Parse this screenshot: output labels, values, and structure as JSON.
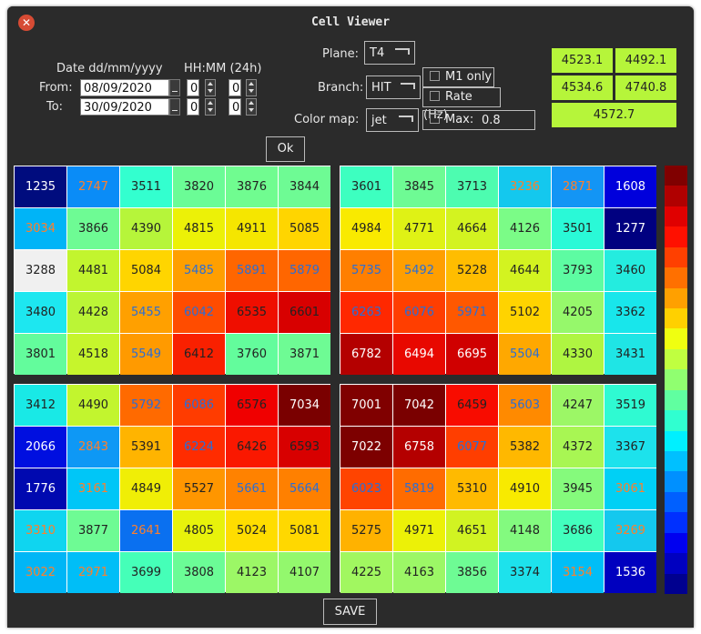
{
  "window": {
    "title": "Cell Viewer"
  },
  "dates": {
    "date_header": "Date dd/mm/yyyy",
    "time_header": "HH:MM (24h)",
    "from_label": "From:",
    "to_label": "To:",
    "from_date": "08/09/2020",
    "to_date": "30/09/2020",
    "from_hour": "0",
    "from_minute": "0",
    "to_hour": "0",
    "to_minute": "0"
  },
  "controls": {
    "plane_label": "Plane:",
    "plane_value": "T4",
    "branch_label": "Branch:",
    "branch_value": "HIT",
    "colormap_label": "Color map:",
    "colormap_value": "jet",
    "m1_only_label": "M1 only",
    "rate_label": "Rate (Hz)",
    "max_label": "Max:",
    "max_value": "0.8",
    "ok_label": "Ok",
    "save_label": "SAVE"
  },
  "stats": {
    "values": [
      "4523.1",
      "4492.1",
      "4534.6",
      "4740.8",
      "4572.7"
    ],
    "color": "#b6f53a"
  },
  "grids": [
    {
      "name": "top-left",
      "values": [
        [
          1235,
          2747,
          3511,
          3820,
          3876,
          3844
        ],
        [
          3034,
          3866,
          4390,
          4815,
          4911,
          5085
        ],
        [
          3288,
          4481,
          5084,
          5485,
          5891,
          5879
        ],
        [
          3480,
          4428,
          5455,
          6042,
          6535,
          6601
        ],
        [
          3801,
          4518,
          5549,
          6412,
          3760,
          3871
        ]
      ],
      "colors": [
        [
          "#000c7e",
          "#0a8cf7",
          "#33ffcf",
          "#6bfc96",
          "#70fc90",
          "#6efb94"
        ],
        [
          "#00b4f7",
          "#6efb94",
          "#b6f53a",
          "#ecf107",
          "#f5e600",
          "#ffd500"
        ],
        [
          "#f0f0f0",
          "#c2f52e",
          "#ffd500",
          "#ff9f00",
          "#ff6600",
          "#ff6600"
        ],
        [
          "#1de7f0",
          "#bbf536",
          "#ffa000",
          "#ff4c00",
          "#ef0e00",
          "#d80000"
        ],
        [
          "#63fc9c",
          "#c6f52c",
          "#ff9a00",
          "#f92000",
          "#63fc9c",
          "#6efb94"
        ]
      ],
      "text": [
        [
          "#ffffff",
          "#ff7f2a",
          "#222222",
          "#222222",
          "#222222",
          "#222222"
        ],
        [
          "#ff7f2a",
          "#222222",
          "#222222",
          "#222222",
          "#222222",
          "#222222"
        ],
        [
          "#222222",
          "#222222",
          "#222222",
          "#2a6ed6",
          "#2a6ed6",
          "#2a6ed6"
        ],
        [
          "#222222",
          "#222222",
          "#2a6ed6",
          "#2a6ed6",
          "#222222",
          "#222222"
        ],
        [
          "#222222",
          "#222222",
          "#2a6ed6",
          "#222222",
          "#222222",
          "#222222"
        ]
      ]
    },
    {
      "name": "top-right",
      "values": [
        [
          3601,
          3845,
          3713,
          3236,
          2871,
          1608
        ],
        [
          4984,
          4771,
          4664,
          4126,
          3501,
          1277
        ],
        [
          5735,
          5492,
          5228,
          4644,
          3793,
          3460
        ],
        [
          6263,
          6076,
          5971,
          5102,
          4205,
          3362
        ],
        [
          6782,
          6494,
          6695,
          5504,
          4330,
          3431
        ]
      ],
      "colors": [
        [
          "#3dffc0",
          "#6efb94",
          "#4dfcb0",
          "#14c8ee",
          "#1395f5",
          "#0000dc"
        ],
        [
          "#f9ea00",
          "#dff215",
          "#d3f320",
          "#7bfc87",
          "#2af9d7",
          "#000080"
        ],
        [
          "#ff7f00",
          "#ff9f00",
          "#ffbd00",
          "#d3f320",
          "#5dfca2",
          "#24ecdf"
        ],
        [
          "#ff2800",
          "#ff3e00",
          "#ff5800",
          "#ffd300",
          "#96f86b",
          "#18e6eb"
        ],
        [
          "#b40000",
          "#e80800",
          "#d00000",
          "#ffa800",
          "#aff541",
          "#1fe5e5"
        ]
      ],
      "text": [
        [
          "#222222",
          "#222222",
          "#222222",
          "#ff7f2a",
          "#ff7f2a",
          "#ffffff"
        ],
        [
          "#222222",
          "#222222",
          "#222222",
          "#222222",
          "#222222",
          "#ffffff"
        ],
        [
          "#2a6ed6",
          "#2a6ed6",
          "#222222",
          "#222222",
          "#222222",
          "#222222"
        ],
        [
          "#2a6ed6",
          "#2a6ed6",
          "#2a6ed6",
          "#222222",
          "#222222",
          "#222222"
        ],
        [
          "#ffffff",
          "#ffffff",
          "#ffffff",
          "#2a6ed6",
          "#222222",
          "#222222"
        ]
      ]
    },
    {
      "name": "bottom-left",
      "values": [
        [
          3412,
          4490,
          5792,
          6086,
          6576,
          7034
        ],
        [
          2066,
          2843,
          5391,
          6224,
          6426,
          6593
        ],
        [
          1776,
          3161,
          4849,
          5527,
          5661,
          5664
        ],
        [
          3310,
          3877,
          2641,
          4805,
          5024,
          5081
        ],
        [
          3022,
          2971,
          3699,
          3808,
          4123,
          4107
        ]
      ],
      "colors": [
        [
          "#19e9e6",
          "#c2f52e",
          "#ff6a00",
          "#ff3c00",
          "#f00000",
          "#7a0000"
        ],
        [
          "#000fe0",
          "#0e98f5",
          "#ffb400",
          "#ff2c00",
          "#fa1800",
          "#d80000"
        ],
        [
          "#0009b0",
          "#00c6f7",
          "#f0ee06",
          "#ff9600",
          "#ff8200",
          "#ff8000"
        ],
        [
          "#0fd5f0",
          "#6efb94",
          "#0a70f0",
          "#e8f20b",
          "#ffdd00",
          "#ffd800"
        ],
        [
          "#00b6f6",
          "#00bef7",
          "#45ffb8",
          "#6bfc96",
          "#9cf766",
          "#93f86d"
        ]
      ],
      "text": [
        [
          "#222222",
          "#222222",
          "#2a6ed6",
          "#2a6ed6",
          "#222222",
          "#ffffff"
        ],
        [
          "#ffffff",
          "#ff7f2a",
          "#222222",
          "#2a6ed6",
          "#222222",
          "#222222"
        ],
        [
          "#ffffff",
          "#ff7f2a",
          "#222222",
          "#222222",
          "#2a6ed6",
          "#2a6ed6"
        ],
        [
          "#ff7f2a",
          "#222222",
          "#ff7f2a",
          "#222222",
          "#222222",
          "#222222"
        ],
        [
          "#ff7f2a",
          "#ff7f2a",
          "#222222",
          "#222222",
          "#222222",
          "#222222"
        ]
      ]
    },
    {
      "name": "bottom-right",
      "values": [
        [
          7001,
          7042,
          6459,
          5603,
          4247,
          3519
        ],
        [
          7022,
          6758,
          6077,
          5382,
          4372,
          3367
        ],
        [
          6023,
          5819,
          5310,
          4910,
          3945,
          3061
        ],
        [
          5275,
          4971,
          4651,
          4148,
          3686,
          3269
        ],
        [
          4225,
          4163,
          3856,
          3374,
          3154,
          1536
        ]
      ],
      "colors": [
        [
          "#800000",
          "#7a0000",
          "#f80c00",
          "#ff8a00",
          "#9cf766",
          "#2ffad2"
        ],
        [
          "#7d0000",
          "#b40000",
          "#ff3e00",
          "#ffb800",
          "#a8f653",
          "#1de2ec"
        ],
        [
          "#ff4400",
          "#ff6c00",
          "#ffba00",
          "#f8ea00",
          "#85fa7c",
          "#00d0f5"
        ],
        [
          "#ffb200",
          "#ecf107",
          "#d1f322",
          "#83fa7f",
          "#42ffbe",
          "#14c8ee"
        ],
        [
          "#a1f760",
          "#9cf766",
          "#6efb94",
          "#1de2ec",
          "#00bef7",
          "#0000bf"
        ]
      ],
      "text": [
        [
          "#ffffff",
          "#ffffff",
          "#222222",
          "#2a6ed6",
          "#222222",
          "#222222"
        ],
        [
          "#ffffff",
          "#ffffff",
          "#2a6ed6",
          "#222222",
          "#222222",
          "#222222"
        ],
        [
          "#2a6ed6",
          "#2a6ed6",
          "#222222",
          "#222222",
          "#222222",
          "#ff7f2a"
        ],
        [
          "#222222",
          "#222222",
          "#222222",
          "#222222",
          "#222222",
          "#ff7f2a"
        ],
        [
          "#222222",
          "#222222",
          "#222222",
          "#222222",
          "#ff7f2a",
          "#ffffff"
        ]
      ]
    }
  ],
  "color_scale": [
    "#800000",
    "#b00000",
    "#e00000",
    "#ff1000",
    "#ff4000",
    "#ff7000",
    "#ffa000",
    "#ffd000",
    "#f0ff10",
    "#c0ff40",
    "#90ff70",
    "#60ffa0",
    "#30ffd0",
    "#00f0ff",
    "#00c0ff",
    "#0090ff",
    "#0060ff",
    "#0030ff",
    "#0000f0",
    "#0000c0",
    "#00008f"
  ]
}
